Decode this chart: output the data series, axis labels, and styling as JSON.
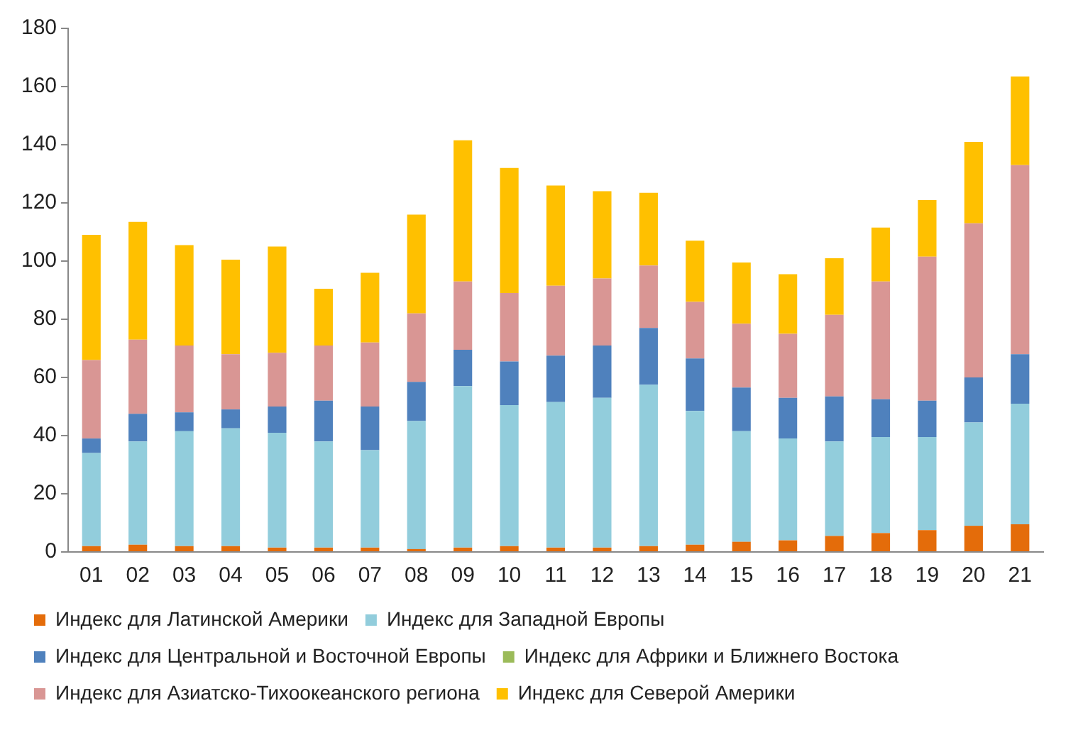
{
  "chart_data": {
    "type": "bar",
    "stacked": true,
    "grid": false,
    "legend": "bottom",
    "categories": [
      "01",
      "02",
      "03",
      "04",
      "05",
      "06",
      "07",
      "08",
      "09",
      "10",
      "11",
      "12",
      "13",
      "14",
      "15",
      "16",
      "17",
      "18",
      "19",
      "20",
      "21"
    ],
    "ylim": [
      0,
      180
    ],
    "yticks": [
      0,
      20,
      40,
      60,
      80,
      100,
      120,
      140,
      160,
      180
    ],
    "series": [
      {
        "name": "Индекс для Латинской Америки",
        "color": "#e46c0a",
        "values": [
          2,
          2.5,
          2,
          2,
          1.5,
          1.5,
          1.5,
          1,
          1.5,
          2,
          1.5,
          1.5,
          2,
          2.5,
          3.5,
          4,
          5.5,
          6.5,
          7.5,
          9,
          9.5
        ]
      },
      {
        "name": "Индекс для Западной Европы",
        "color": "#92cddc",
        "values": [
          32,
          35.5,
          39.5,
          40.5,
          39.5,
          36.5,
          33.5,
          44,
          55.5,
          48.5,
          50,
          51.5,
          55.5,
          46,
          38,
          35,
          32.5,
          33,
          32,
          35.5,
          41.5
        ]
      },
      {
        "name": "Индекс для Центральной и Восточной Европы",
        "color": "#4f81bd",
        "values": [
          5,
          9.5,
          6.5,
          6.5,
          9,
          14,
          15,
          13.5,
          12.5,
          15,
          16,
          18,
          19.5,
          18,
          15,
          14,
          15.5,
          13,
          12.5,
          15.5,
          17
        ]
      },
      {
        "name": "Индекс для Африки и Ближнего Востока",
        "color": "#9bbb59",
        "values": [
          0,
          0,
          0,
          0,
          0,
          0,
          0,
          0,
          0,
          0,
          0,
          0,
          0,
          0,
          0,
          0,
          0,
          0,
          0,
          0,
          0
        ]
      },
      {
        "name": "Индекс для Азиатско-Тихоокеанского региона",
        "color": "#d99694",
        "values": [
          27,
          25.5,
          23,
          19,
          18.5,
          19,
          22,
          23.5,
          23.5,
          23.5,
          24,
          23,
          21.5,
          19.5,
          22,
          22,
          28,
          40.5,
          49.5,
          53,
          65
        ]
      },
      {
        "name": "Индекс для Северой Америки",
        "color": "#ffc000",
        "values": [
          43,
          40.5,
          34.5,
          32.5,
          36.5,
          19.5,
          24,
          34,
          48.5,
          43,
          34.5,
          30,
          25,
          21,
          21,
          20.5,
          19.5,
          18.5,
          19.5,
          28,
          30.5
        ]
      }
    ]
  }
}
